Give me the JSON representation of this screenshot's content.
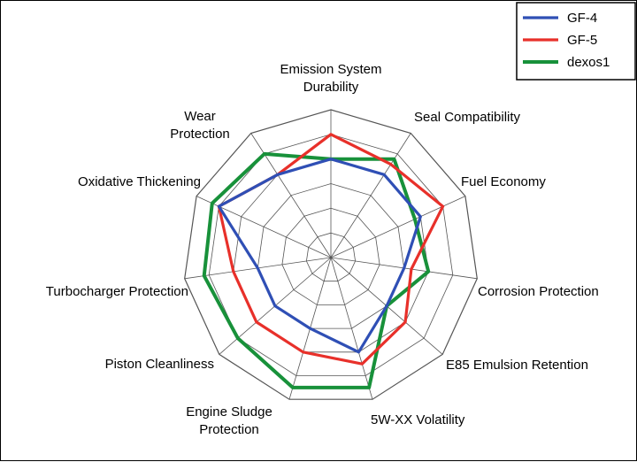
{
  "chart_data": {
    "type": "radar",
    "title": "",
    "grid": true,
    "rings": 6,
    "rlim": [
      0,
      6
    ],
    "legend_position": "top-right",
    "axes": [
      "Emission System Durability",
      "Seal Compatibility",
      "Fuel Economy",
      "Corrosion Protection",
      "E85 Emulsion Retention",
      "5W-XX Volatility",
      "Engine Sludge Protection",
      "Piston Cleanliness",
      "Turbocharger Protection",
      "Oxidative Thickening",
      "Wear Protection"
    ],
    "axis_labels": [
      [
        "Emission System",
        "Durability"
      ],
      [
        "Seal Compatibility"
      ],
      [
        "Fuel Economy"
      ],
      [
        "Corrosion Protection"
      ],
      [
        "E85 Emulsion Retention"
      ],
      [
        "5W-XX Volatility"
      ],
      [
        "Engine Sludge",
        "Protection"
      ],
      [
        "Piston Cleanliness"
      ],
      [
        "Turbocharger Protection"
      ],
      [
        "Oxidative Thickening"
      ],
      [
        "Wear",
        "Protection"
      ]
    ],
    "series": [
      {
        "name": "GF-4",
        "color": "#2f4fb5",
        "values": [
          4.0,
          4.0,
          4.0,
          3.0,
          3.0,
          4.0,
          3.0,
          3.0,
          3.0,
          5.0,
          4.0
        ]
      },
      {
        "name": "GF-5",
        "color": "#e8302a",
        "values": [
          5.0,
          4.5,
          5.0,
          3.3,
          4.0,
          4.5,
          4.0,
          4.0,
          4.0,
          5.0,
          4.0
        ]
      },
      {
        "name": "dexos1",
        "color": "#18913a",
        "values": [
          4.0,
          4.75,
          3.75,
          4.0,
          3.0,
          5.5,
          5.5,
          5.0,
          5.2,
          5.3,
          5.0
        ]
      }
    ]
  }
}
